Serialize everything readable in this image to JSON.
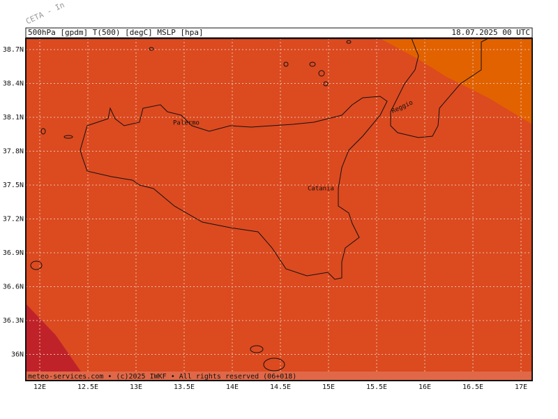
{
  "watermark": "CETA - In",
  "header": {
    "left": "500hPa [gpdm] T(500) [degC] MSLP [hpa]",
    "right": "18.07.2025 00 UTC"
  },
  "lat_labels": [
    "38.7N",
    "38.4N",
    "38.1N",
    "37.8N",
    "37.5N",
    "37.2N",
    "36.9N",
    "36.6N",
    "36.3N",
    "36N"
  ],
  "lon_labels": [
    "12E",
    "12.5E",
    "13E",
    "13.5E",
    "14E",
    "14.5E",
    "15E",
    "15.5E",
    "16E",
    "16.5E",
    "17E"
  ],
  "places": [
    "Palermo",
    "Catania",
    "Reggio"
  ],
  "footer": "meteo-services.com • (c)2025 IWKF • All rights reserved (06+018)"
}
